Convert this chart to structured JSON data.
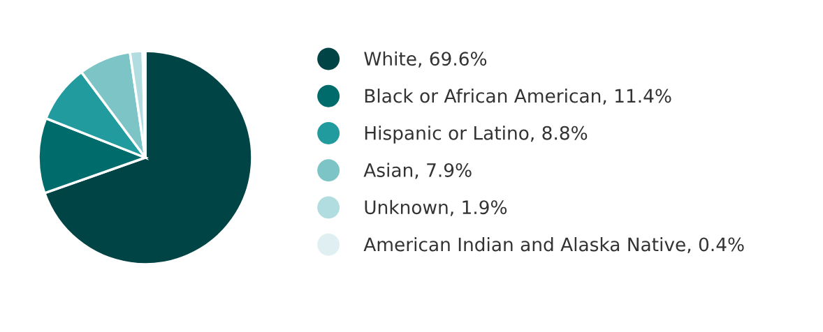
{
  "chart_data": {
    "type": "pie",
    "categories": [
      "White",
      "Black or African American",
      "Hispanic or Latino",
      "Asian",
      "Unknown",
      "American Indian and Alaska Native"
    ],
    "values": [
      69.6,
      11.4,
      8.8,
      7.9,
      1.9,
      0.4
    ],
    "colors": [
      "#004445",
      "#006b6b",
      "#219b9d",
      "#7dc4c6",
      "#b2dde0",
      "#e0f0f2"
    ],
    "value_labels": [
      "69.6%",
      "11.4%",
      "8.8%",
      "7.9%",
      "1.9%",
      "0.4%"
    ],
    "legend": "right"
  }
}
